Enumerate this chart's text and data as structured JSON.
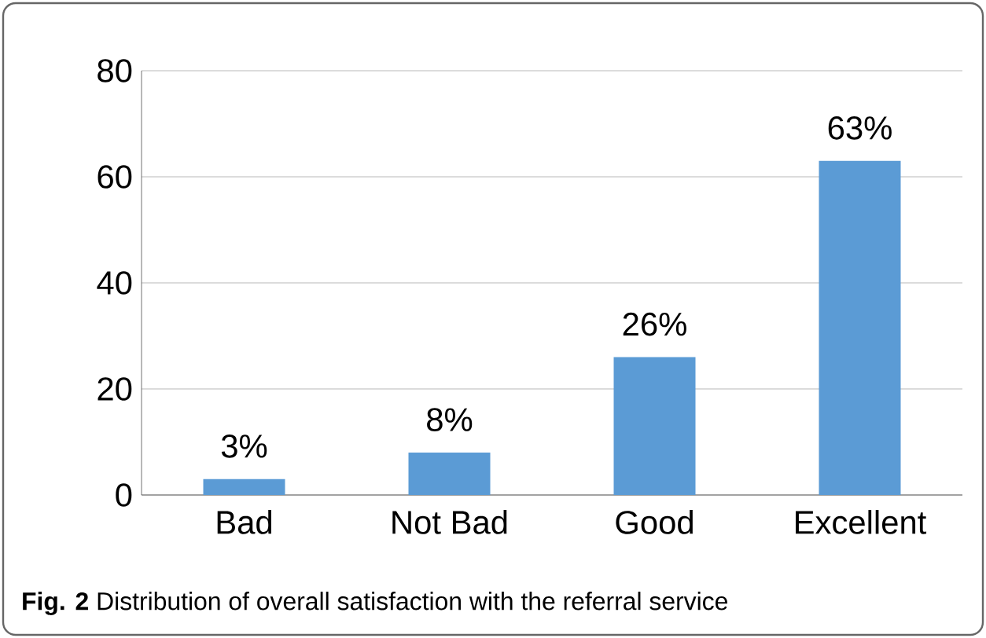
{
  "chart_data": {
    "type": "bar",
    "categories": [
      "Bad",
      "Not Bad",
      "Good",
      "Excellent"
    ],
    "values": [
      3,
      8,
      26,
      63
    ],
    "value_labels": [
      "3%",
      "8%",
      "26%",
      "63%"
    ],
    "color": "#5b9bd5",
    "ylim": [
      0,
      80
    ],
    "yticks": [
      0,
      20,
      40,
      60,
      80
    ],
    "grid": "y",
    "annotations": [
      "**Fig. 2** Distribution of overall satisfaction with the referral service"
    ]
  }
}
